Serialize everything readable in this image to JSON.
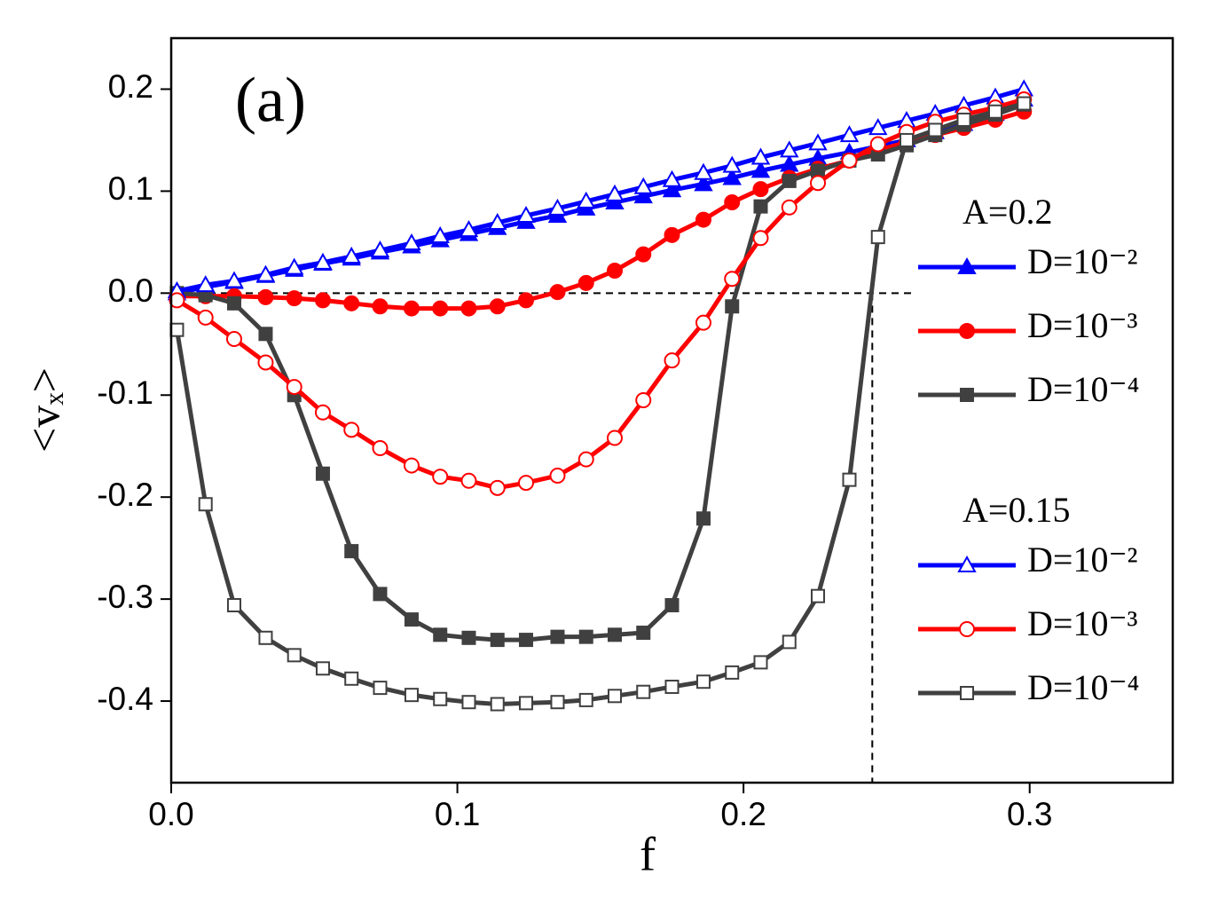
{
  "chart_data": {
    "type": "line",
    "annotation": "(a)",
    "xlabel": "f",
    "ylabel": "<vₓ>",
    "x": [
      0.002,
      0.012,
      0.022,
      0.033,
      0.043,
      0.053,
      0.063,
      0.073,
      0.084,
      0.094,
      0.104,
      0.114,
      0.124,
      0.135,
      0.145,
      0.155,
      0.165,
      0.175,
      0.186,
      0.196,
      0.206,
      0.216,
      0.226,
      0.237,
      0.247,
      0.257,
      0.267,
      0.277,
      0.288,
      0.298
    ],
    "series": [
      {
        "name": "D=10⁻²",
        "group": "A=0.2",
        "color": "#0000ff",
        "marker": "triangle",
        "filled": true,
        "values": [
          0.0,
          0.006,
          0.011,
          0.017,
          0.023,
          0.029,
          0.034,
          0.04,
          0.046,
          0.052,
          0.058,
          0.064,
          0.07,
          0.076,
          0.083,
          0.089,
          0.095,
          0.101,
          0.107,
          0.113,
          0.12,
          0.126,
          0.132,
          0.138,
          0.144,
          0.15,
          0.158,
          0.166,
          0.176,
          0.19
        ]
      },
      {
        "name": "D=10⁻³",
        "group": "A=0.2",
        "color": "#ff0000",
        "marker": "circle",
        "filled": true,
        "values": [
          -0.003,
          -0.003,
          -0.003,
          -0.004,
          -0.005,
          -0.007,
          -0.01,
          -0.013,
          -0.015,
          -0.015,
          -0.015,
          -0.013,
          -0.007,
          0.001,
          0.01,
          0.022,
          0.038,
          0.057,
          0.072,
          0.089,
          0.102,
          0.113,
          0.122,
          0.13,
          0.14,
          0.148,
          0.155,
          0.162,
          0.17,
          0.178
        ]
      },
      {
        "name": "D=10⁻⁴",
        "group": "A=0.2",
        "color": "#404040",
        "marker": "square",
        "filled": true,
        "values": [
          0.0,
          -0.002,
          -0.01,
          -0.04,
          -0.1,
          -0.177,
          -0.253,
          -0.295,
          -0.32,
          -0.335,
          -0.338,
          -0.34,
          -0.34,
          -0.337,
          -0.337,
          -0.335,
          -0.333,
          -0.306,
          -0.221,
          -0.013,
          0.085,
          0.11,
          0.12,
          0.13,
          0.136,
          0.145,
          0.155,
          0.165,
          0.175,
          0.185
        ]
      },
      {
        "name": "D=10⁻²",
        "group": "A=0.15",
        "color": "#0000ff",
        "marker": "triangle",
        "filled": false,
        "values": [
          0.002,
          0.008,
          0.012,
          0.018,
          0.025,
          0.03,
          0.036,
          0.042,
          0.049,
          0.056,
          0.062,
          0.069,
          0.076,
          0.083,
          0.09,
          0.097,
          0.104,
          0.111,
          0.118,
          0.125,
          0.133,
          0.14,
          0.147,
          0.155,
          0.162,
          0.169,
          0.176,
          0.184,
          0.192,
          0.2
        ]
      },
      {
        "name": "D=10⁻³",
        "group": "A=0.15",
        "color": "#ff0000",
        "marker": "circle",
        "filled": false,
        "values": [
          -0.007,
          -0.024,
          -0.045,
          -0.068,
          -0.092,
          -0.117,
          -0.134,
          -0.152,
          -0.169,
          -0.18,
          -0.184,
          -0.191,
          -0.186,
          -0.179,
          -0.163,
          -0.142,
          -0.105,
          -0.066,
          -0.029,
          0.014,
          0.054,
          0.084,
          0.108,
          0.13,
          0.146,
          0.158,
          0.168,
          0.175,
          0.182,
          0.19
        ]
      },
      {
        "name": "D=10⁻⁴",
        "group": "A=0.15",
        "color": "#404040",
        "marker": "square",
        "filled": false,
        "values": [
          -0.036,
          -0.207,
          -0.306,
          -0.338,
          -0.355,
          -0.368,
          -0.378,
          -0.387,
          -0.394,
          -0.398,
          -0.401,
          -0.403,
          -0.402,
          -0.401,
          -0.399,
          -0.395,
          -0.391,
          -0.386,
          -0.381,
          -0.372,
          -0.362,
          -0.342,
          -0.297,
          -0.183,
          0.055,
          0.15,
          0.16,
          0.17,
          0.178,
          0.186
        ]
      }
    ],
    "xlim": [
      0,
      0.35
    ],
    "ylim": [
      -0.48,
      0.25
    ],
    "xticks": [
      {
        "value": 0,
        "label": "0.0"
      },
      0.1,
      0.2,
      0.3
    ],
    "yticks": [
      0.2,
      0.1,
      {
        "value": 0,
        "label": "0.0"
      },
      -0.1,
      -0.2,
      -0.3,
      -0.4
    ],
    "reference_lines": [
      {
        "y": 0,
        "x_end": 0.26
      },
      {
        "x": 0.245,
        "y_start": 0
      }
    ],
    "grid": false
  }
}
